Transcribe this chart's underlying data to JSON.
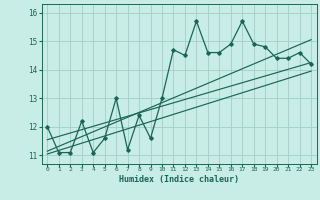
{
  "title": "",
  "xlabel": "Humidex (Indice chaleur)",
  "ylabel": "",
  "bg_color": "#c8ece6",
  "grid_color": "#a0d0c8",
  "line_color": "#1a6655",
  "xlim": [
    -0.5,
    23.5
  ],
  "ylim": [
    10.7,
    16.3
  ],
  "xticks": [
    0,
    1,
    2,
    3,
    4,
    5,
    6,
    7,
    8,
    9,
    10,
    11,
    12,
    13,
    14,
    15,
    16,
    17,
    18,
    19,
    20,
    21,
    22,
    23
  ],
  "yticks": [
    11,
    12,
    13,
    14,
    15,
    16
  ],
  "main_line_x": [
    0,
    1,
    2,
    3,
    4,
    5,
    6,
    7,
    8,
    9,
    10,
    11,
    12,
    13,
    14,
    15,
    16,
    17,
    18,
    19,
    20,
    21,
    22,
    23
  ],
  "main_line_y": [
    12.0,
    11.1,
    11.1,
    12.2,
    11.1,
    11.6,
    13.0,
    11.2,
    12.4,
    11.6,
    13.0,
    14.7,
    14.5,
    15.7,
    14.6,
    14.6,
    14.9,
    15.7,
    14.9,
    14.8,
    14.4,
    14.4,
    14.6,
    14.2
  ],
  "trend1_x": [
    0,
    23
  ],
  "trend1_y": [
    11.55,
    14.25
  ],
  "trend2_x": [
    0,
    23
  ],
  "trend2_y": [
    11.05,
    13.95
  ],
  "trend3_x": [
    0,
    23
  ],
  "trend3_y": [
    11.15,
    15.05
  ]
}
